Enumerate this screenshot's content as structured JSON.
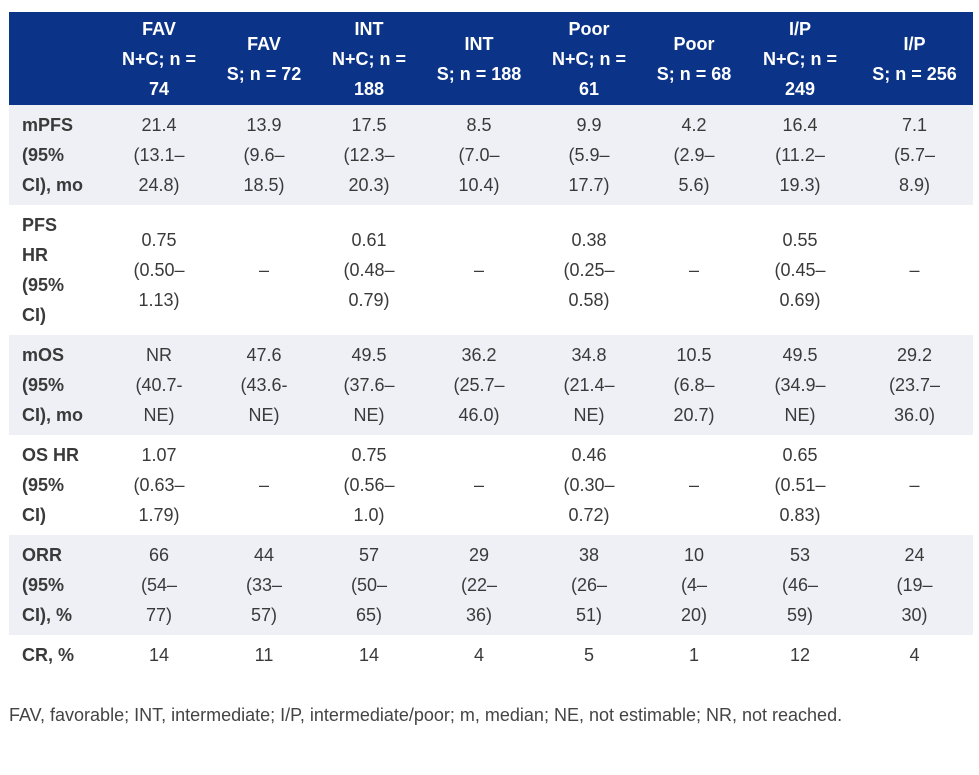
{
  "table": {
    "columns": [
      "",
      "FAV N+C; n = 74",
      "FAV S; n = 72",
      "INT N+C; n = 188",
      "INT S; n = 188",
      "Poor N+C; n = 61",
      "Poor S; n = 68",
      "I/P N+C; n = 249",
      "I/P S; n = 256"
    ],
    "rows": [
      {
        "label": "mPFS (95% CI), mo",
        "cells": [
          "21.4 (13.1–24.8)",
          "13.9 (9.6–18.5)",
          "17.5 (12.3–20.3)",
          "8.5 (7.0–10.4)",
          "9.9 (5.9–17.7)",
          "4.2 (2.9–5.6)",
          "16.4 (11.2–19.3)",
          "7.1 (5.7–8.9)"
        ]
      },
      {
        "label": "PFS HR (95% CI)",
        "cells": [
          "0.75 (0.50–1.13)",
          "–",
          "0.61 (0.48–0.79)",
          "–",
          "0.38 (0.25–0.58)",
          "–",
          "0.55 (0.45–0.69)",
          "–"
        ]
      },
      {
        "label": "mOS (95% CI), mo",
        "cells": [
          "NR (40.7-NE)",
          "47.6 (43.6-NE)",
          "49.5 (37.6–NE)",
          "36.2 (25.7–46.0)",
          "34.8 (21.4–NE)",
          "10.5 (6.8–20.7)",
          "49.5 (34.9–NE)",
          "29.2 (23.7–36.0)"
        ]
      },
      {
        "label": "OS HR (95% CI)",
        "cells": [
          "1.07 (0.63–1.79)",
          "–",
          "0.75 (0.56–1.0)",
          "–",
          "0.46 (0.30–0.72)",
          "–",
          "0.65 (0.51–0.83)",
          "–"
        ]
      },
      {
        "label": "ORR (95% CI), %",
        "cells": [
          "66 (54–77)",
          "44 (33–57)",
          "57 (50–65)",
          "29 (22–36)",
          "38 (26–51)",
          "10 (4–20)",
          "53 (46–59)",
          "24 (19–30)"
        ]
      },
      {
        "label": "CR, %",
        "cells": [
          "14",
          "11",
          "14",
          "4",
          "5",
          "1",
          "12",
          "4"
        ]
      }
    ]
  },
  "footnote": "FAV, favorable; INT, intermediate; I/P, intermediate/poor; m, median; NE, not estimable; NR, not reached."
}
